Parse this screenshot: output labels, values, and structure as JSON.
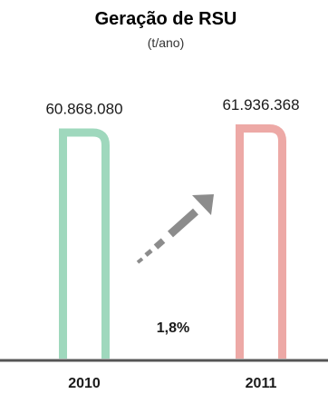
{
  "chart_data": {
    "type": "bar",
    "title": "Geração de RSU",
    "subtitle": "(t/ano)",
    "categories": [
      "2010",
      "2011"
    ],
    "values": [
      60868080,
      61936368
    ],
    "value_labels": [
      "60.868.080",
      "61.936.368"
    ],
    "growth_label": "1,8%",
    "colors": [
      "#9fd8bd",
      "#eda9a6"
    ],
    "baseline_color": "#555555",
    "arrow_color": "#8c8c8c",
    "ylim": [
      0,
      61936368
    ],
    "grid": false
  }
}
